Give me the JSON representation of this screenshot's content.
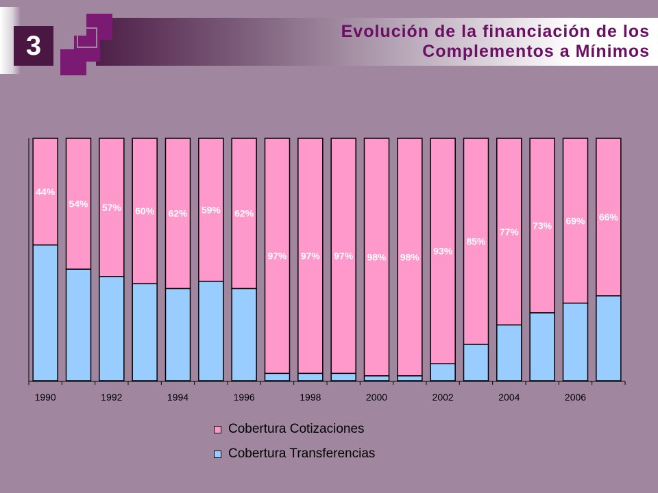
{
  "slide": {
    "number": "3",
    "title_line1": "Evolución de la financiación de los",
    "title_line2": "Complementos a Mínimos"
  },
  "colors": {
    "background": "#A0879F",
    "title": "#6B0F64",
    "cotizaciones": "#FF99CC",
    "transferencias": "#99CCFF"
  },
  "chart_data": {
    "type": "bar",
    "stacked": true,
    "percent": true,
    "categories": [
      "1990",
      "1991",
      "1992",
      "1993",
      "1994",
      "1995",
      "1996",
      "1997",
      "1998",
      "1999",
      "2000",
      "2001",
      "2002",
      "2003",
      "2004",
      "2005",
      "2006",
      "2007"
    ],
    "tick_labels": [
      "1990",
      "1992",
      "1994",
      "1996",
      "1998",
      "2000",
      "2002",
      "2004",
      "2006"
    ],
    "series": [
      {
        "name": "Cobertura Transferencias",
        "color": "#99CCFF",
        "values": [
          56,
          46,
          43,
          40,
          38,
          41,
          38,
          3,
          3,
          3,
          2,
          2,
          7,
          15,
          23,
          28,
          32,
          35
        ]
      },
      {
        "name": "Cobertura Cotizaciones",
        "color": "#FF99CC",
        "values": [
          44,
          54,
          57,
          60,
          62,
          59,
          62,
          97,
          97,
          97,
          98,
          98,
          93,
          85,
          77,
          73,
          69,
          66
        ]
      }
    ],
    "data_labels": [
      "44%",
      "54%",
      "57%",
      "60%",
      "62%",
      "59%",
      "62%",
      "97%",
      "97%",
      "97%",
      "98%",
      "98%",
      "93%",
      "85%",
      "77%",
      "73%",
      "69%",
      "66%"
    ],
    "ylim": [
      0,
      100
    ],
    "grid": false,
    "legend_position": "bottom"
  },
  "legend": {
    "cotizaciones": "Cobertura Cotizaciones",
    "transferencias": "Cobertura Transferencias"
  }
}
